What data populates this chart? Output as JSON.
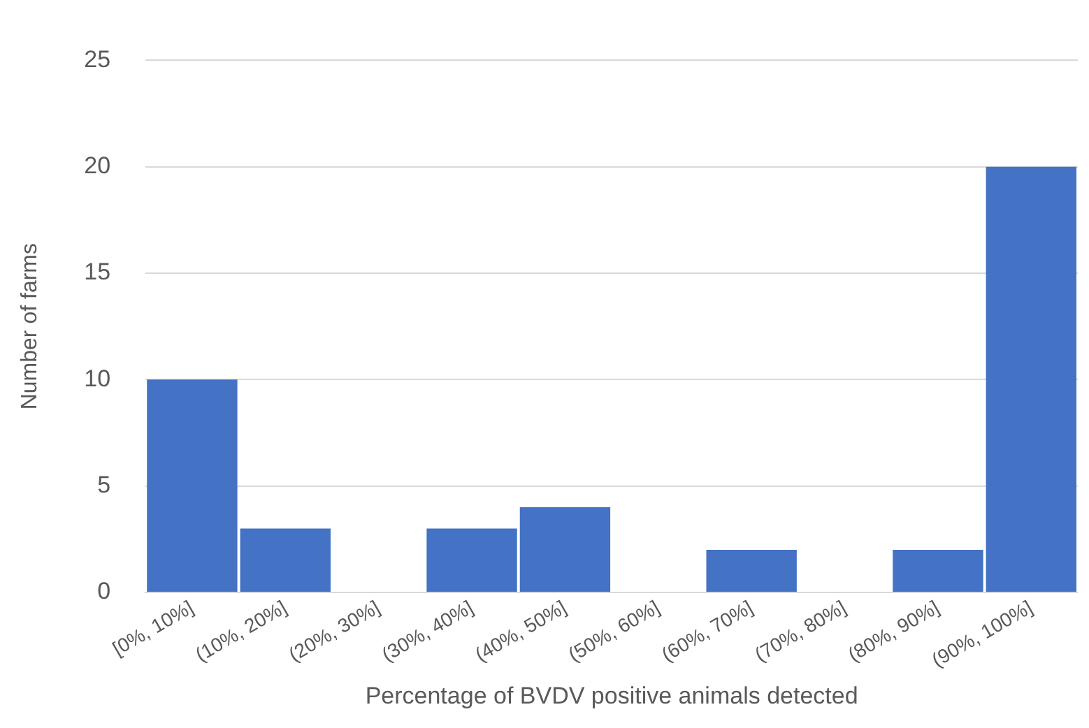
{
  "chart_data": {
    "type": "bar",
    "xlabel": "Percentage of BVDV positive animals detected",
    "ylabel": "Number of farms",
    "categories": [
      "[0%, 10%]",
      "(10%, 20%]",
      "(20%, 30%]",
      "(30%, 40%]",
      "(40%, 50%]",
      "(50%, 60%]",
      "(60%, 70%]",
      "(70%, 80%]",
      "(80%, 90%]",
      "(90%, 100%]"
    ],
    "values": [
      10,
      3,
      0,
      3,
      4,
      0,
      2,
      0,
      2,
      20
    ],
    "color": "#4472c4",
    "ylim": [
      0,
      25
    ],
    "yticks": [
      0,
      5,
      10,
      15,
      20,
      25
    ],
    "grid": "y"
  }
}
